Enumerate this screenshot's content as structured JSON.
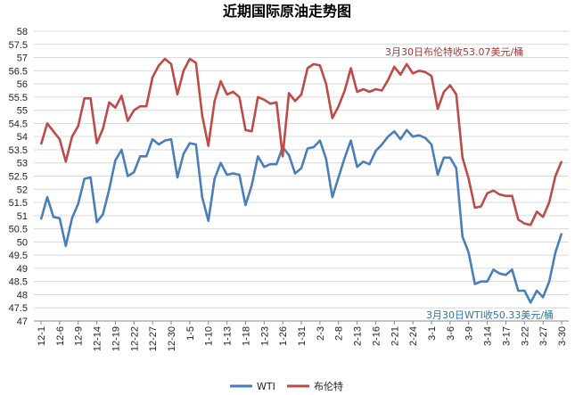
{
  "chart_data": {
    "type": "line",
    "title": "近期国际原油走势图",
    "ylim": [
      47,
      58
    ],
    "y_ticks": [
      47,
      47.5,
      48,
      48.5,
      49,
      49.5,
      50,
      50.5,
      51,
      51.5,
      52,
      52.5,
      53,
      53.5,
      54,
      54.5,
      55,
      55.5,
      56,
      56.5,
      57,
      57.5,
      58
    ],
    "x_tick_labels": [
      "12-1",
      "12-6",
      "12-9",
      "12-14",
      "12-19",
      "12-22",
      "12-27",
      "12-30",
      "1-5",
      "1-10",
      "1-13",
      "1-18",
      "1-23",
      "1-26",
      "1-31",
      "2-3",
      "2-8",
      "2-13",
      "2-16",
      "2-21",
      "2-24",
      "3-1",
      "3-6",
      "3-9",
      "3-14",
      "3-17",
      "3-22",
      "3-27",
      "3-30"
    ],
    "grid": "horizontal",
    "legend_position": "bottom",
    "series": [
      {
        "name": "WTI",
        "color": "#4a7ebb",
        "values": [
          50.85,
          51.7,
          50.95,
          50.9,
          49.85,
          50.9,
          51.45,
          52.4,
          52.45,
          50.75,
          51.05,
          52.0,
          53.1,
          53.5,
          52.5,
          52.65,
          53.25,
          53.25,
          53.9,
          53.7,
          53.85,
          53.9,
          52.45,
          53.35,
          53.75,
          53.7,
          51.7,
          50.8,
          52.4,
          53.0,
          52.55,
          52.6,
          52.55,
          51.4,
          52.15,
          53.25,
          52.85,
          52.95,
          52.95,
          53.6,
          53.3,
          52.6,
          52.8,
          53.55,
          53.6,
          53.85,
          53.15,
          51.7,
          52.45,
          53.2,
          53.85,
          52.85,
          53.05,
          52.95,
          53.45,
          53.7,
          54.0,
          54.2,
          53.9,
          54.25,
          54.0,
          54.05,
          53.95,
          53.7,
          52.55,
          53.2,
          53.2,
          52.8,
          50.2,
          49.6,
          48.4,
          48.5,
          48.5,
          48.95,
          48.8,
          48.75,
          48.95,
          48.15,
          48.15,
          47.7,
          48.15,
          47.9,
          48.5,
          49.6,
          50.33
        ]
      },
      {
        "name": "布伦特",
        "color": "#be4b48",
        "values": [
          53.7,
          54.5,
          54.2,
          53.9,
          53.05,
          54.0,
          54.4,
          55.45,
          55.45,
          53.75,
          54.3,
          55.3,
          55.1,
          55.55,
          54.6,
          55.0,
          55.15,
          55.15,
          56.25,
          56.7,
          56.95,
          56.75,
          55.6,
          56.5,
          56.95,
          56.8,
          54.8,
          53.65,
          55.35,
          56.1,
          55.6,
          55.7,
          55.5,
          54.25,
          54.2,
          55.5,
          55.4,
          55.25,
          55.3,
          53.25,
          55.65,
          55.35,
          55.6,
          56.6,
          56.75,
          56.7,
          56.0,
          54.7,
          55.15,
          55.75,
          56.6,
          55.7,
          55.8,
          55.7,
          55.8,
          55.75,
          56.15,
          56.65,
          56.35,
          56.75,
          56.4,
          56.5,
          56.45,
          56.3,
          55.05,
          55.7,
          55.95,
          55.6,
          53.2,
          52.4,
          51.3,
          51.35,
          51.85,
          51.95,
          51.8,
          51.75,
          51.75,
          50.85,
          50.7,
          50.65,
          51.15,
          50.95,
          51.5,
          52.5,
          53.07
        ]
      }
    ],
    "annotations": [
      {
        "text": "3月30日布伦特收53.07美元/桶",
        "series": "布伦特"
      },
      {
        "text": "3月30日WTI收50.33美元/桶",
        "series": "WTI"
      }
    ]
  }
}
